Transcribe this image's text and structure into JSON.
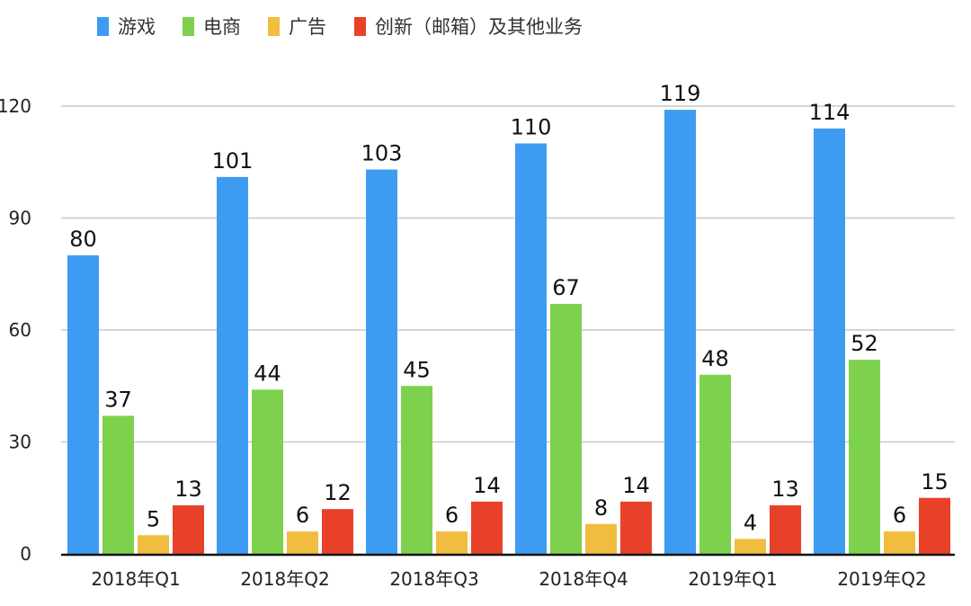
{
  "chart_data": {
    "type": "bar",
    "title": "",
    "xlabel": "",
    "ylabel": "",
    "categories": [
      "2018年Q1",
      "2018年Q2",
      "2018年Q3",
      "2018年Q4",
      "2019年Q1",
      "2019年Q2"
    ],
    "series": [
      {
        "name": "游戏",
        "color": "#3d9cf2",
        "values": [
          80,
          101,
          103,
          110,
          119,
          114
        ]
      },
      {
        "name": "电商",
        "color": "#7dd14c",
        "values": [
          37,
          44,
          45,
          67,
          48,
          52
        ]
      },
      {
        "name": "广告",
        "color": "#f0bd3f",
        "values": [
          5,
          6,
          6,
          8,
          4,
          6
        ]
      },
      {
        "name": "创新（邮箱）及其他业务",
        "color": "#e8412a",
        "values": [
          13,
          12,
          14,
          14,
          13,
          15
        ]
      }
    ],
    "ylim": [
      0,
      120
    ],
    "yticks": [
      0,
      30,
      60,
      90,
      120
    ],
    "grid": true,
    "legend": "top",
    "data_labels": true
  }
}
